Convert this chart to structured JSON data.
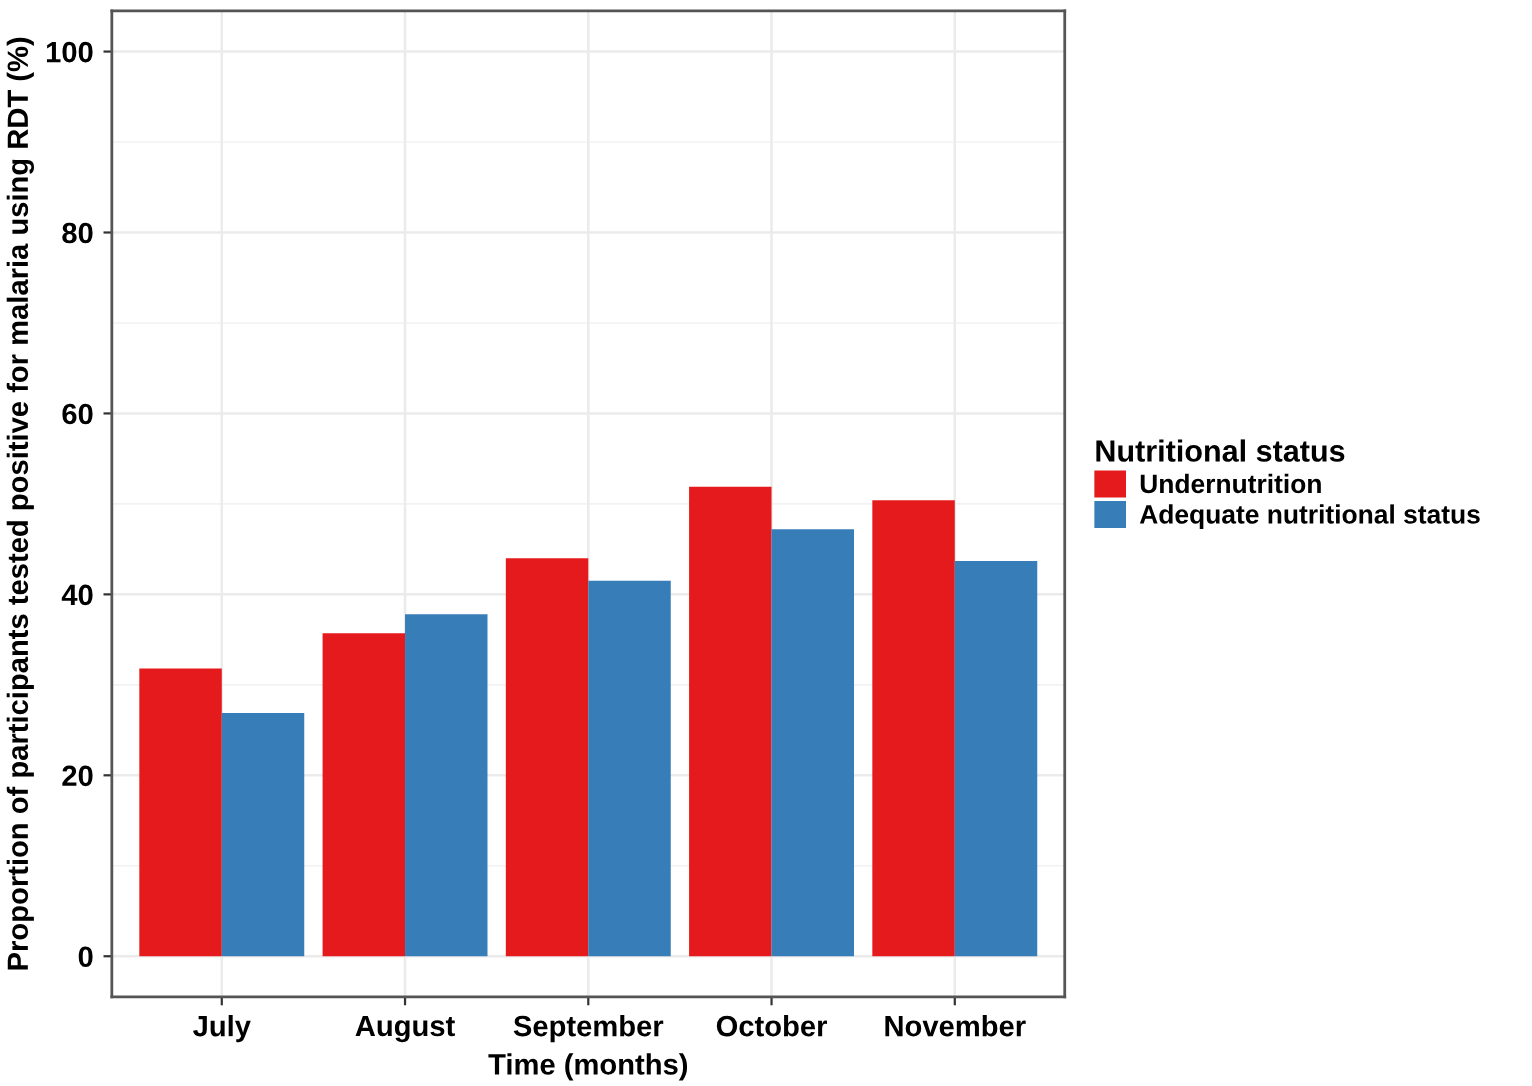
{
  "chart_data": {
    "type": "bar",
    "xlabel": "Time (months)",
    "ylabel": "Proportion of participants tested positive for malaria using RDT (%)",
    "categories": [
      "July",
      "August",
      "September",
      "October",
      "November"
    ],
    "series": [
      {
        "name": "Undernutrition",
        "color": "#e41a1c",
        "values": [
          31.8,
          35.7,
          44.0,
          51.9,
          50.4
        ]
      },
      {
        "name": "Adequate nutritional status",
        "color": "#377eb8",
        "values": [
          26.9,
          37.8,
          41.5,
          47.2,
          43.7
        ]
      }
    ],
    "legend_title": "Nutritional status",
    "legend": "right",
    "ylim": [
      -4.5,
      104.5
    ],
    "yticks": [
      0,
      20,
      40,
      60,
      80,
      100
    ],
    "grid": true
  }
}
